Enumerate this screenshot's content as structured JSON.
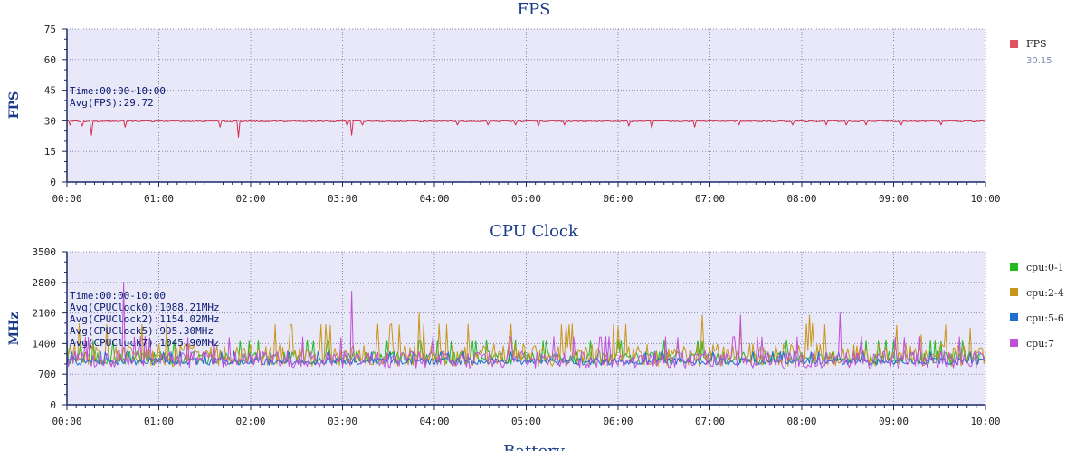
{
  "chart_data": [
    {
      "type": "line",
      "title": "FPS",
      "ylabel": "FPS",
      "ylim": [
        0,
        75
      ],
      "yticks": [
        "0",
        "15",
        "30",
        "45",
        "60",
        "75"
      ],
      "xticks": [
        "00:00",
        "01:00",
        "02:00",
        "03:00",
        "04:00",
        "05:00",
        "06:00",
        "07:00",
        "08:00",
        "09:00",
        "10:00"
      ],
      "xlim_minutes": [
        0,
        600
      ],
      "grid": true,
      "annotations": [
        "Time:00:00-10:00",
        "Avg(FPS):29.72"
      ],
      "legend": [
        {
          "name": "FPS",
          "sub": "30.15",
          "color": "#e05262"
        }
      ],
      "series": [
        {
          "name": "FPS",
          "color": "#d43050",
          "base": 29.8,
          "dips": [
            [
              2,
              28
            ],
            [
              10,
              27.5
            ],
            [
              16,
              23
            ],
            [
              38,
              27
            ],
            [
              100,
              27
            ],
            [
              112,
              22
            ],
            [
              183,
              27.5
            ],
            [
              186,
              23
            ],
            [
              193,
              28
            ],
            [
              255,
              28
            ],
            [
              275,
              28
            ],
            [
              293,
              28
            ],
            [
              308,
              27.5
            ],
            [
              325,
              28
            ],
            [
              367,
              27.5
            ],
            [
              382,
              26.5
            ],
            [
              410,
              27
            ],
            [
              439,
              28
            ],
            [
              474,
              28
            ],
            [
              496,
              28
            ],
            [
              509,
              28
            ],
            [
              522,
              28
            ],
            [
              545,
              28
            ],
            [
              571,
              28
            ],
            [
              603,
              28
            ]
          ]
        }
      ]
    },
    {
      "type": "line",
      "title": "CPU Clock",
      "ylabel": "MHz",
      "ylim": [
        0,
        3500
      ],
      "yticks": [
        "0",
        "700",
        "1400",
        "2100",
        "2800",
        "3500"
      ],
      "xticks": [
        "00:00",
        "01:00",
        "02:00",
        "03:00",
        "04:00",
        "05:00",
        "06:00",
        "07:00",
        "08:00",
        "09:00",
        "10:00"
      ],
      "xlim_minutes": [
        0,
        600
      ],
      "grid": true,
      "annotations": [
        "Time:00:00-10:00",
        "Avg(CPUClock0):1088.21MHz",
        "Avg(CPUClock2):1154.02MHz",
        "Avg(CPUClock5):995.30MHz",
        "Avg(CPUClock7):1045.90MHz"
      ],
      "legend": [
        {
          "name": "cpu:0-1",
          "color": "#22bb22"
        },
        {
          "name": "cpu:2-4",
          "color": "#c8961a"
        },
        {
          "name": "cpu:5-6",
          "color": "#1f6fd0"
        },
        {
          "name": "cpu:7",
          "color": "#c050d8"
        }
      ],
      "series": [
        {
          "name": "cpu:0-1",
          "color": "#22bb22",
          "base": 1088,
          "spread": 200,
          "peaks": []
        },
        {
          "name": "cpu:2-4",
          "color": "#c8961a",
          "base": 1154,
          "spread": 350,
          "peaks": [
            [
              230,
              2100
            ],
            [
              360,
              1800
            ],
            [
              415,
              2050
            ],
            [
              485,
              2050
            ],
            [
              558,
              1600
            ],
            [
              590,
              1750
            ]
          ]
        },
        {
          "name": "cpu:5-6",
          "color": "#1f6fd0",
          "base": 995,
          "spread": 110,
          "peaks": []
        },
        {
          "name": "cpu:7",
          "color": "#c050d8",
          "base": 1046,
          "spread": 260,
          "peaks": [
            [
              37,
              2800
            ],
            [
              186,
              2600
            ],
            [
              440,
              2050
            ],
            [
              505,
              2100
            ]
          ]
        }
      ]
    }
  ],
  "next_panel_title": "Battery"
}
